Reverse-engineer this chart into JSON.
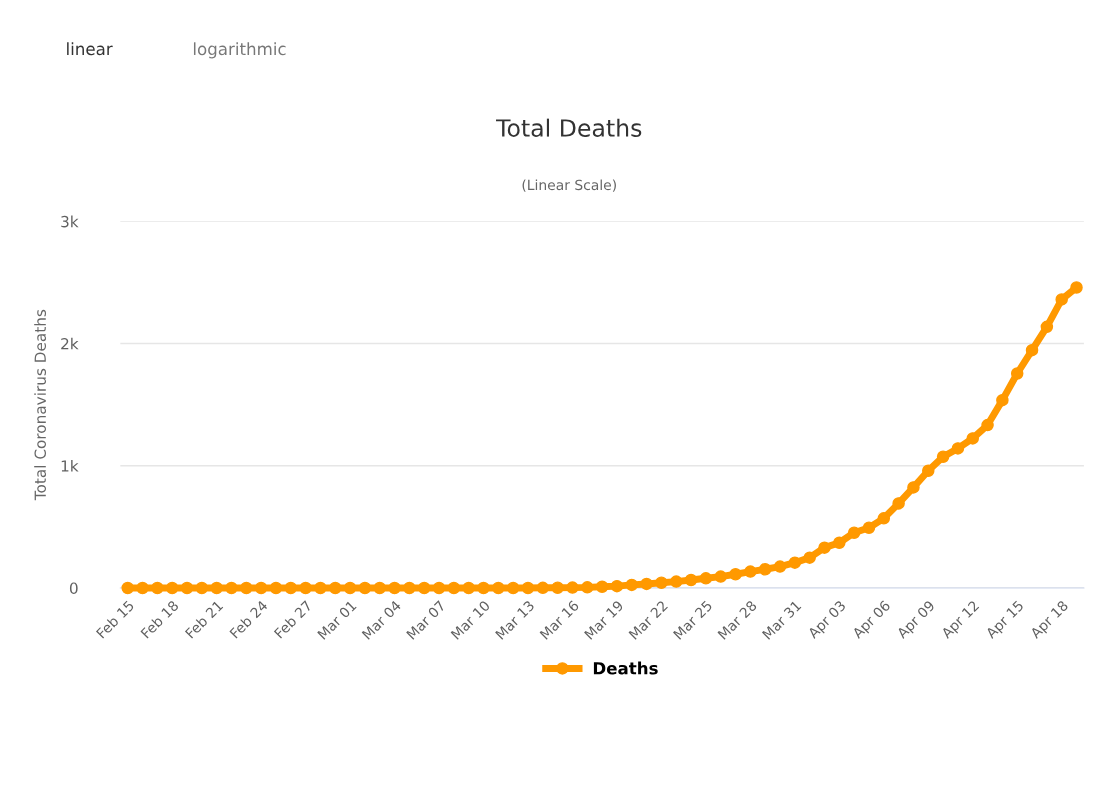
{
  "chart_data": {
    "type": "line",
    "title": "Total Deaths",
    "subtitle": "(Linear Scale)",
    "ylabel": "Total Coronavirus Deaths",
    "annotations": [
      "linear",
      "logarithmic"
    ],
    "categories": [
      "Feb 15",
      null,
      null,
      "Feb 18",
      null,
      null,
      "Feb 21",
      null,
      null,
      "Feb 24",
      null,
      null,
      "Feb 27",
      null,
      null,
      "Mar 01",
      null,
      null,
      "Mar 04",
      null,
      null,
      "Mar 07",
      null,
      null,
      "Mar 10",
      null,
      null,
      "Mar 13",
      null,
      null,
      "Mar 16",
      null,
      null,
      "Mar 19",
      null,
      null,
      "Mar 22",
      null,
      null,
      "Mar 25",
      null,
      null,
      "Mar 28",
      null,
      null,
      "Mar 31",
      null,
      null,
      "Apr 03",
      null,
      null,
      "Apr 06",
      null,
      null,
      "Apr 09",
      null,
      null,
      "Apr 12",
      null,
      null,
      "Apr 15",
      null,
      null,
      "Apr 18",
      null
    ],
    "series": [
      {
        "name": "Deaths",
        "color": "#ff9900",
        "values": [
          0,
          0,
          0,
          0,
          0,
          0,
          0,
          0,
          0,
          0,
          0,
          0,
          0,
          0,
          0,
          0,
          0,
          0,
          0,
          0,
          0,
          0,
          0,
          0,
          0,
          0,
          0,
          0,
          1,
          2,
          3,
          5,
          10,
          15,
          25,
          33,
          43,
          52,
          65,
          79,
          93,
          112,
          134,
          153,
          175,
          207,
          248,
          330,
          370,
          452,
          493,
          570,
          692,
          823,
          959,
          1074,
          1142,
          1224,
          1333,
          1537,
          1755,
          1946,
          2137,
          2361,
          2459
        ]
      }
    ],
    "ylim": [
      0,
      3000
    ],
    "yticks": [
      0,
      {
        "value": 1000,
        "label": "1k"
      },
      {
        "value": 2000,
        "label": "2k"
      },
      {
        "value": 3000,
        "label": "3k"
      }
    ],
    "grid": "y",
    "legend": "bottom",
    "marker": "circle",
    "line_style": "solid"
  }
}
